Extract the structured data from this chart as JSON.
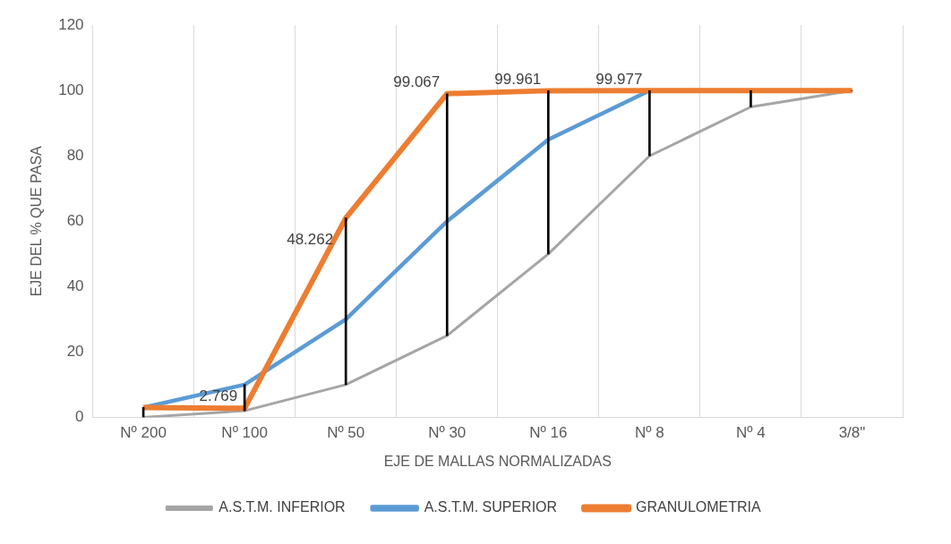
{
  "chart_data": {
    "type": "line",
    "xlabel": "EJE DE MALLAS NORMALIZADAS",
    "ylabel": "EJE DEL % QUE PASA",
    "categories": [
      "Nº 200",
      "Nº 100",
      "Nº 50",
      "Nº 30",
      "Nº 16",
      "Nº 8",
      "Nº 4",
      "3/8\""
    ],
    "series": [
      {
        "name": "A.S.T.M. INFERIOR",
        "color": "#a5a5a5",
        "values": [
          0,
          2,
          10,
          25,
          50,
          80,
          95,
          100
        ]
      },
      {
        "name": "A.S.T.M. SUPERIOR",
        "color": "#5b9bd5",
        "values": [
          3,
          10,
          30,
          60,
          85,
          100,
          null,
          100
        ]
      },
      {
        "name": "GRANULOMETRIA",
        "color": "#ed7d31",
        "values": [
          3,
          2.769,
          61,
          99.067,
          99.961,
          99.977,
          100,
          100
        ],
        "value_labels": [
          null,
          "2.769",
          null,
          "99.067",
          "99.961",
          "99.977",
          null,
          null
        ]
      },
      {
        "type": "bar",
        "color": "#000000",
        "base": [
          0,
          2,
          10,
          25,
          50,
          80,
          95,
          100
        ],
        "values": [
          3,
          8,
          51,
          74,
          50,
          20,
          5,
          0
        ]
      }
    ],
    "annotations": [
      {
        "text": "48.262",
        "x": "Nº 50",
        "y": 52
      }
    ],
    "ylim": [
      0,
      120
    ],
    "yticks": [
      0,
      20,
      40,
      60,
      80,
      100,
      120
    ],
    "grid": "x",
    "legend": "bottom",
    "marker": "none",
    "line_style": "solid"
  }
}
